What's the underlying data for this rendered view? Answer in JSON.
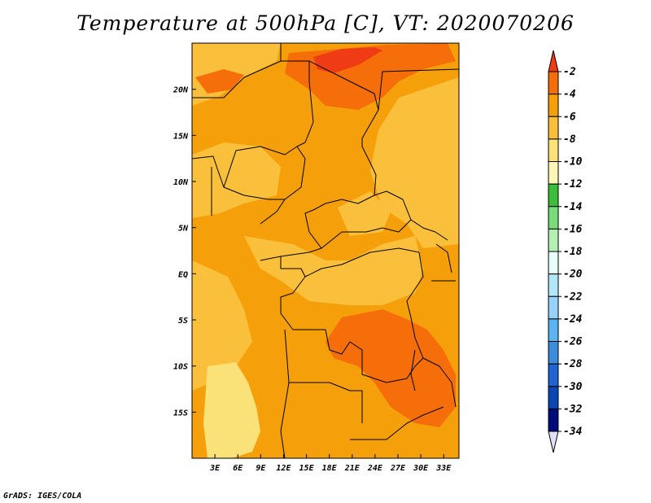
{
  "title": "Temperature at 500hPa [C], VT: 2020070206",
  "credit": "GrADS: IGES/COLA",
  "map": {
    "lon_range": [
      0,
      35
    ],
    "lat_range": [
      -20,
      25
    ],
    "lat_ticks": [
      {
        "value": 20,
        "label": "20N"
      },
      {
        "value": 15,
        "label": "15N"
      },
      {
        "value": 10,
        "label": "10N"
      },
      {
        "value": 5,
        "label": "5N"
      },
      {
        "value": 0,
        "label": "EQ"
      },
      {
        "value": -5,
        "label": "5S"
      },
      {
        "value": -10,
        "label": "10S"
      },
      {
        "value": -15,
        "label": "15S"
      }
    ],
    "lon_ticks": [
      {
        "value": 3,
        "label": "3E"
      },
      {
        "value": 6,
        "label": "6E"
      },
      {
        "value": 9,
        "label": "9E"
      },
      {
        "value": 12,
        "label": "12E"
      },
      {
        "value": 15,
        "label": "15E"
      },
      {
        "value": 18,
        "label": "18E"
      },
      {
        "value": 21,
        "label": "21E"
      },
      {
        "value": 24,
        "label": "24E"
      },
      {
        "value": 27,
        "label": "27E"
      },
      {
        "value": 30,
        "label": "30E"
      },
      {
        "value": 33,
        "label": "33E"
      }
    ]
  },
  "colorbar": {
    "levels": [
      "-2",
      "-4",
      "-6",
      "-8",
      "-10",
      "-12",
      "-14",
      "-16",
      "-18",
      "-20",
      "-22",
      "-24",
      "-26",
      "-28",
      "-30",
      "-32",
      "-34"
    ],
    "colors": [
      "#f03c14",
      "#f56e0a",
      "#f5a00a",
      "#fac03c",
      "#fae178",
      "#fff5b4",
      "#3cbe3c",
      "#78dc78",
      "#b4f0b4",
      "#e6fffa",
      "#b4e6fa",
      "#96d2fa",
      "#5ab4f0",
      "#3c8cdc",
      "#1e64d2",
      "#0a46b4",
      "#000a78",
      "#e1e1fa"
    ]
  }
}
